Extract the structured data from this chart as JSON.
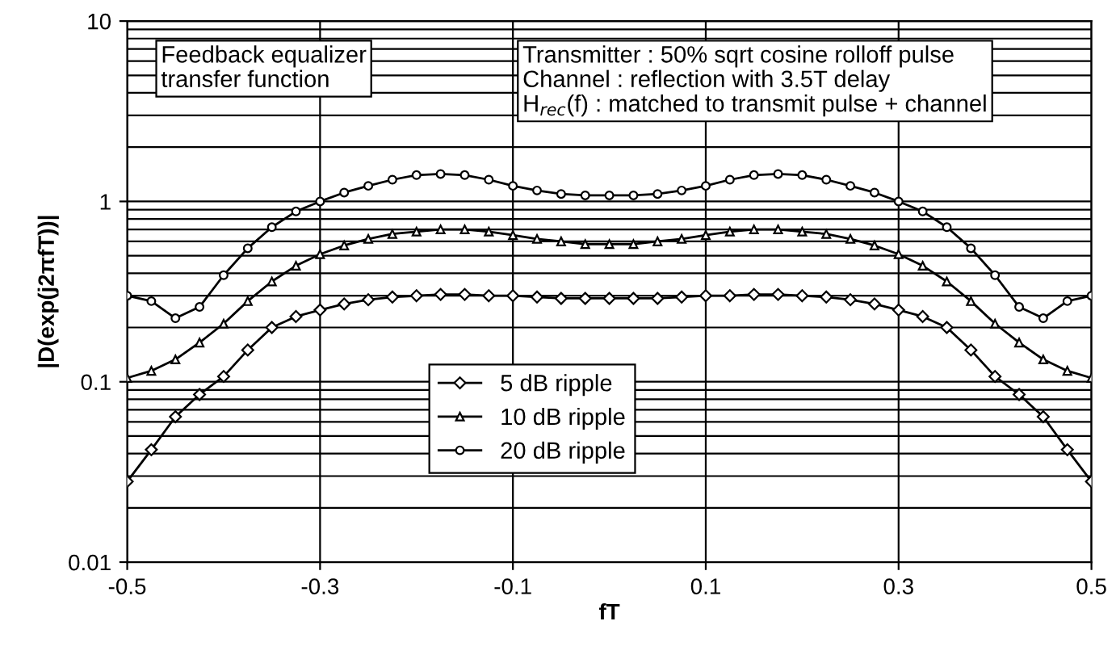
{
  "chart_data": {
    "type": "line",
    "xlabel": "fT",
    "ylabel": "|D(exp(j2πfT))|",
    "x": [
      -0.5,
      -0.475,
      -0.45,
      -0.425,
      -0.4,
      -0.375,
      -0.35,
      -0.325,
      -0.3,
      -0.275,
      -0.25,
      -0.225,
      -0.2,
      -0.175,
      -0.15,
      -0.125,
      -0.1,
      -0.075,
      -0.05,
      -0.025,
      0,
      0.025,
      0.05,
      0.075,
      0.1,
      0.125,
      0.15,
      0.175,
      0.2,
      0.225,
      0.25,
      0.275,
      0.3,
      0.325,
      0.35,
      0.375,
      0.4,
      0.425,
      0.45,
      0.475,
      0.5
    ],
    "series": [
      {
        "name": "5 dB ripple",
        "color": "#000000",
        "marker": "diamond",
        "values": [
          0.028,
          0.042,
          0.064,
          0.085,
          0.107,
          0.15,
          0.2,
          0.23,
          0.25,
          0.27,
          0.285,
          0.295,
          0.3,
          0.305,
          0.305,
          0.3,
          0.3,
          0.295,
          0.29,
          0.29,
          0.29,
          0.29,
          0.29,
          0.295,
          0.3,
          0.3,
          0.305,
          0.305,
          0.3,
          0.295,
          0.285,
          0.27,
          0.25,
          0.23,
          0.2,
          0.15,
          0.107,
          0.085,
          0.064,
          0.042,
          0.028
        ]
      },
      {
        "name": "10 dB ripple",
        "color": "#000000",
        "marker": "triangle",
        "values": [
          0.105,
          0.115,
          0.133,
          0.165,
          0.21,
          0.28,
          0.36,
          0.44,
          0.51,
          0.57,
          0.62,
          0.66,
          0.68,
          0.7,
          0.7,
          0.68,
          0.65,
          0.62,
          0.6,
          0.58,
          0.58,
          0.58,
          0.6,
          0.62,
          0.65,
          0.68,
          0.7,
          0.7,
          0.68,
          0.66,
          0.62,
          0.57,
          0.51,
          0.44,
          0.36,
          0.28,
          0.21,
          0.165,
          0.133,
          0.115,
          0.105
        ]
      },
      {
        "name": "20 dB ripple",
        "color": "#000000",
        "marker": "circle",
        "values": [
          0.3,
          0.28,
          0.225,
          0.26,
          0.39,
          0.55,
          0.72,
          0.88,
          1.0,
          1.12,
          1.22,
          1.32,
          1.4,
          1.42,
          1.4,
          1.32,
          1.22,
          1.15,
          1.1,
          1.08,
          1.08,
          1.08,
          1.1,
          1.15,
          1.22,
          1.32,
          1.4,
          1.42,
          1.4,
          1.32,
          1.22,
          1.12,
          1.0,
          0.88,
          0.72,
          0.55,
          0.39,
          0.26,
          0.225,
          0.28,
          0.3
        ]
      }
    ],
    "log": "y",
    "xlim": [
      -0.5,
      0.5
    ],
    "xticks": [
      -0.5,
      -0.3,
      -0.1,
      0.1,
      0.3,
      0.5
    ],
    "ylim": [
      0.01,
      10
    ],
    "yticks": [
      0.01,
      0.1,
      1,
      10
    ],
    "grid": true,
    "legend": "center",
    "line_style": "solid",
    "annotations": [
      "Feedback equalizer\ntransfer function",
      "Transmitter : 50% sqrt cosine rolloff pulse\nChannel : reflection with 3.5T delay\nH$_{rec}$(f) : matched to transmit pulse + channel"
    ]
  }
}
